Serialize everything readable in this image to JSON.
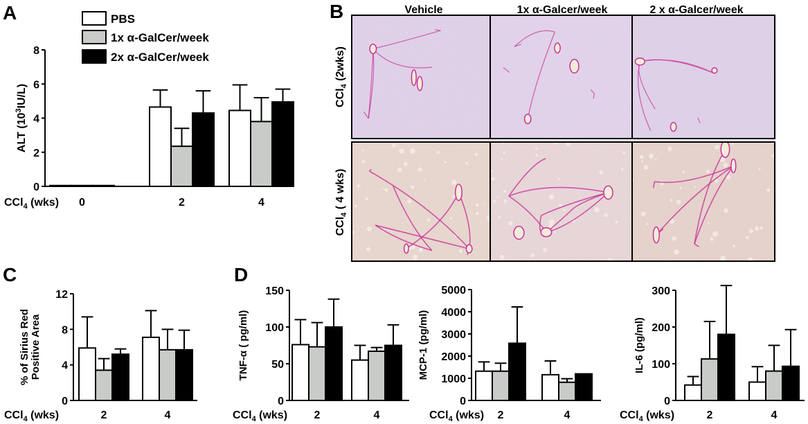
{
  "panel_letters": {
    "a": "A",
    "b": "B",
    "c": "C",
    "d": "D"
  },
  "legend": {
    "items": [
      {
        "label": "PBS",
        "color": "#ffffff"
      },
      {
        "label": "1x α-GalCer/week",
        "color": "#c8cbc8"
      },
      {
        "label": "2x α-GalCer/week",
        "color": "#000000"
      }
    ]
  },
  "colors": {
    "pbs": "#ffffff",
    "one_x": "#c8cbc8",
    "two_x": "#000000",
    "stain_bg": "#e6d6ea",
    "fibrosis": "#c8329a"
  },
  "histology": {
    "columns": [
      "Vehicle",
      "1x α-Galcer/week",
      "2 x α-Galcer/week"
    ],
    "rows": [
      "CCl4 (2wks)",
      "CCl4 ( 4 wks)"
    ]
  },
  "chart_data": [
    {
      "id": "A",
      "type": "bar",
      "xlabel": "CCl4 (wks)",
      "ylabel": "ALT (10³IU/L)",
      "ylabel_parts": [
        "ALT (10",
        "3",
        "IU/L)"
      ],
      "categories": [
        "0",
        "2",
        "4"
      ],
      "ylim": [
        0,
        8
      ],
      "yticks": [
        0,
        2,
        4,
        6,
        8
      ],
      "series": [
        {
          "name": "PBS",
          "values": [
            0.05,
            4.65,
            4.45
          ],
          "errors": [
            0.02,
            1.0,
            1.5
          ]
        },
        {
          "name": "1x α-GalCer/week",
          "values": [
            0.05,
            2.35,
            3.8
          ],
          "errors": [
            0.02,
            1.05,
            1.4
          ]
        },
        {
          "name": "2x α-GalCer/week",
          "values": [
            0.05,
            4.3,
            4.95
          ],
          "errors": [
            0.02,
            1.3,
            0.75
          ]
        }
      ]
    },
    {
      "id": "C",
      "type": "bar",
      "xlabel": "CCl4 (wks)",
      "ylabel": "% of Sirius Red Positive Area",
      "ylabel_lines": [
        "% of Sirius Red",
        "Positive Area"
      ],
      "categories": [
        "2",
        "4"
      ],
      "ylim": [
        0,
        12
      ],
      "yticks": [
        0,
        4,
        8,
        12
      ],
      "series": [
        {
          "name": "PBS",
          "values": [
            5.9,
            7.1
          ],
          "errors": [
            3.5,
            3.0
          ]
        },
        {
          "name": "1x α-GalCer/week",
          "values": [
            3.4,
            5.7
          ],
          "errors": [
            1.3,
            2.3
          ]
        },
        {
          "name": "2x α-GalCer/week",
          "values": [
            5.2,
            5.7
          ],
          "errors": [
            0.6,
            2.2
          ]
        }
      ]
    },
    {
      "id": "D1",
      "type": "bar",
      "xlabel": "CCl4 (wks)",
      "ylabel": "TNF-α ( pg/ml)",
      "categories": [
        "2",
        "4"
      ],
      "ylim": [
        0,
        150
      ],
      "yticks": [
        0,
        50,
        100,
        150
      ],
      "series": [
        {
          "name": "PBS",
          "values": [
            76,
            55
          ],
          "errors": [
            34,
            20
          ]
        },
        {
          "name": "1x α-GalCer/week",
          "values": [
            73,
            67
          ],
          "errors": [
            33,
            5
          ]
        },
        {
          "name": "2x α-GalCer/week",
          "values": [
            100,
            75
          ],
          "errors": [
            38,
            28
          ]
        }
      ]
    },
    {
      "id": "D2",
      "type": "bar",
      "xlabel": "CCl4 (wks)",
      "ylabel": "MCP-1 (pg/ml)",
      "categories": [
        "2",
        "4"
      ],
      "ylim": [
        0,
        5000
      ],
      "yticks": [
        0,
        1000,
        2000,
        3000,
        4000,
        5000
      ],
      "series": [
        {
          "name": "PBS",
          "values": [
            1320,
            1160
          ],
          "errors": [
            420,
            620
          ]
        },
        {
          "name": "1x α-GalCer/week",
          "values": [
            1320,
            820
          ],
          "errors": [
            360,
            160
          ]
        },
        {
          "name": "2x α-GalCer/week",
          "values": [
            2580,
            1200
          ],
          "errors": [
            1640,
            110
          ]
        }
      ]
    },
    {
      "id": "D3",
      "type": "bar",
      "xlabel": "CCl4 (wks)",
      "ylabel": "IL-6 (pg/ml)",
      "categories": [
        "2",
        "4"
      ],
      "ylim": [
        0,
        300
      ],
      "yticks": [
        0,
        100,
        200,
        300
      ],
      "series": [
        {
          "name": "PBS",
          "values": [
            42,
            50
          ],
          "errors": [
            23,
            42
          ]
        },
        {
          "name": "1x α-GalCer/week",
          "values": [
            113,
            80
          ],
          "errors": [
            102,
            70
          ]
        },
        {
          "name": "2x α-GalCer/week",
          "values": [
            180,
            93
          ],
          "errors": [
            133,
            100
          ]
        }
      ]
    }
  ]
}
